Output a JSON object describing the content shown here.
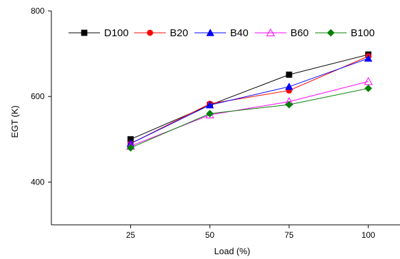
{
  "chart_data": {
    "type": "line",
    "title": "",
    "xlabel": "Load (%)",
    "ylabel": "EGT (K)",
    "x": [
      25,
      50,
      75,
      100
    ],
    "xlim": [
      0,
      110
    ],
    "ylim": [
      300,
      800
    ],
    "yticks": [
      400,
      600,
      800
    ],
    "grid": false,
    "legend_position": "top",
    "series": [
      {
        "name": "D100",
        "color": "#000000",
        "marker": "square",
        "values": [
          500,
          580,
          651,
          698
        ]
      },
      {
        "name": "B20",
        "color": "#ff0000",
        "marker": "circle",
        "values": [
          490,
          583,
          614,
          694
        ]
      },
      {
        "name": "B40",
        "color": "#0000ff",
        "marker": "triangle",
        "values": [
          490,
          580,
          623,
          689
        ]
      },
      {
        "name": "B60",
        "color": "#ff00ff",
        "marker": "triangle-open",
        "values": [
          484,
          557,
          588,
          635
        ]
      },
      {
        "name": "B100",
        "color": "#008000",
        "marker": "diamond",
        "values": [
          480,
          560,
          581,
          619
        ]
      }
    ]
  }
}
